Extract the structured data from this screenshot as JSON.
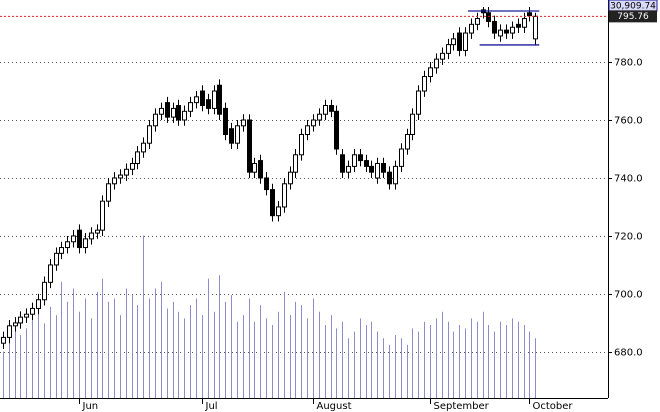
{
  "chart_data": {
    "type": "candlestick",
    "open": [
      683,
      685,
      689,
      690,
      692,
      693,
      695,
      698,
      704,
      710,
      714,
      716,
      718,
      722,
      716,
      719,
      721,
      722,
      732,
      738,
      740,
      741,
      743,
      745,
      749,
      752,
      758,
      762,
      766,
      761,
      765,
      760,
      763,
      766,
      770,
      767,
      764,
      772,
      764,
      757,
      752,
      758,
      760,
      742,
      746,
      740,
      736,
      727,
      730,
      738,
      742,
      748,
      755,
      758,
      760,
      762,
      765,
      763,
      748,
      742,
      744,
      748,
      746,
      744,
      740,
      745,
      742,
      738,
      744,
      750,
      755,
      762,
      770,
      775,
      778,
      781,
      783,
      786,
      790,
      784,
      790,
      793,
      798,
      797,
      794,
      789,
      791,
      790,
      793,
      792,
      797,
      788
    ],
    "high": [
      687,
      691,
      692,
      694,
      695,
      697,
      700,
      706,
      712,
      716,
      718,
      720,
      722,
      724,
      721,
      723,
      724,
      734,
      740,
      742,
      743,
      745,
      747,
      751,
      754,
      760,
      764,
      766,
      768,
      766,
      767,
      765,
      768,
      770,
      772,
      769,
      772,
      774,
      766,
      759,
      760,
      762,
      762,
      747,
      748,
      742,
      738,
      732,
      740,
      744,
      750,
      757,
      760,
      762,
      764,
      767,
      767,
      765,
      750,
      746,
      750,
      750,
      748,
      746,
      747,
      747,
      744,
      746,
      752,
      757,
      764,
      772,
      777,
      780,
      783,
      785,
      788,
      790,
      792,
      792,
      795,
      797,
      799,
      799,
      796,
      793,
      793,
      794,
      795,
      797,
      799,
      797
    ],
    "low": [
      681,
      683,
      687,
      688,
      690,
      691,
      693,
      696,
      702,
      708,
      712,
      714,
      716,
      714,
      714,
      717,
      719,
      720,
      730,
      736,
      738,
      739,
      741,
      743,
      747,
      750,
      756,
      760,
      759,
      759,
      758,
      758,
      761,
      764,
      763,
      762,
      762,
      760,
      753,
      750,
      750,
      756,
      740,
      740,
      738,
      734,
      725,
      725,
      728,
      736,
      740,
      746,
      753,
      756,
      758,
      760,
      761,
      748,
      740,
      740,
      742,
      744,
      742,
      740,
      738,
      740,
      736,
      736,
      742,
      748,
      753,
      760,
      768,
      773,
      776,
      779,
      781,
      784,
      782,
      782,
      788,
      791,
      795,
      792,
      788,
      787,
      788,
      788,
      790,
      790,
      794,
      786
    ],
    "close": [
      685,
      689,
      690,
      692,
      693,
      695,
      698,
      704,
      710,
      714,
      716,
      718,
      720,
      716,
      719,
      721,
      722,
      732,
      738,
      740,
      741,
      743,
      745,
      749,
      752,
      758,
      762,
      764,
      761,
      764,
      760,
      763,
      766,
      768,
      765,
      764,
      770,
      762,
      755,
      752,
      758,
      760,
      742,
      745,
      740,
      736,
      727,
      730,
      738,
      742,
      748,
      755,
      758,
      760,
      762,
      765,
      763,
      750,
      742,
      744,
      748,
      746,
      744,
      742,
      745,
      742,
      738,
      744,
      750,
      755,
      762,
      770,
      775,
      778,
      781,
      783,
      786,
      788,
      784,
      790,
      793,
      795,
      797,
      794,
      790,
      791,
      790,
      792,
      792,
      795,
      796,
      795.76
    ],
    "volume": [
      28,
      46,
      40,
      38,
      42,
      50,
      62,
      45,
      55,
      50,
      70,
      58,
      66,
      52,
      60,
      48,
      64,
      72,
      58,
      60,
      50,
      66,
      62,
      56,
      98,
      60,
      66,
      70,
      54,
      58,
      52,
      48,
      56,
      60,
      50,
      72,
      52,
      74,
      58,
      62,
      46,
      50,
      60,
      46,
      56,
      48,
      44,
      52,
      64,
      50,
      58,
      56,
      48,
      60,
      52,
      44,
      50,
      42,
      46,
      36,
      40,
      48,
      44,
      46,
      40,
      36,
      32,
      38,
      36,
      32,
      42,
      40,
      46,
      44,
      48,
      52,
      46,
      40,
      44,
      42,
      48,
      46,
      52,
      44,
      40,
      46,
      44,
      48,
      46,
      44,
      40,
      36
    ],
    "volume_lim": [
      0,
      240
    ],
    "ylim": [
      664.1,
      801.4
    ],
    "yticks": [
      {
        "value": 680,
        "label": "680.0"
      },
      {
        "value": 700,
        "label": "700.0"
      },
      {
        "value": 720,
        "label": "720.0"
      },
      {
        "value": 740,
        "label": "740.0"
      },
      {
        "value": 760,
        "label": "760.0"
      },
      {
        "value": 780,
        "label": "780.0"
      }
    ],
    "grid": true,
    "months": [
      {
        "index": 13,
        "label": "Jun"
      },
      {
        "index": 34,
        "label": "Jul"
      },
      {
        "index": 53,
        "label": "August"
      },
      {
        "index": 73,
        "label": "September"
      },
      {
        "index": 90,
        "label": "October"
      }
    ],
    "channel": [
      {
        "value": 797.6,
        "from": 80,
        "to": 91
      },
      {
        "value": 785.9,
        "from": 82,
        "to": 91
      }
    ],
    "index_tag": {
      "value": 30909.74,
      "label": "30,909.74"
    },
    "up_color": "#ffffff",
    "down_color": "#000000",
    "volume_color": "#8c8ccc",
    "channel_color": "#1a1aa0",
    "last_line_color": "#e02020"
  }
}
